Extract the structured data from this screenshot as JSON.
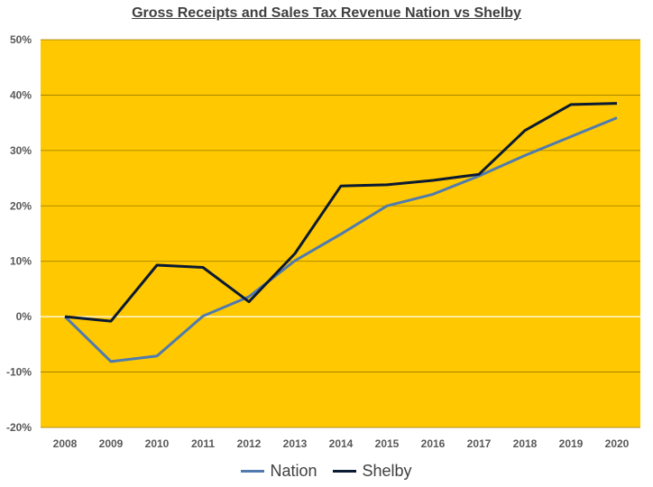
{
  "chart_data": {
    "type": "line",
    "title": "Gross Receipts and Sales Tax Revenue Nation vs Shelby",
    "xlabel": "",
    "ylabel": "",
    "categories": [
      "2008",
      "2009",
      "2010",
      "2011",
      "2012",
      "2013",
      "2014",
      "2015",
      "2016",
      "2017",
      "2018",
      "2019",
      "2020"
    ],
    "ylim": [
      -20,
      50
    ],
    "yticks": [
      -20,
      -10,
      0,
      10,
      20,
      30,
      40,
      50
    ],
    "ytick_labels": [
      "-20%",
      "-10%",
      "0%",
      "10%",
      "20%",
      "30%",
      "40%",
      "50%"
    ],
    "series": [
      {
        "name": "Nation",
        "color": "#4F7BAF",
        "values": [
          0,
          -8.1,
          -7.1,
          0.1,
          3.6,
          10.1,
          14.9,
          20,
          22.1,
          25.4,
          29.1,
          32.5,
          35.9
        ]
      },
      {
        "name": "Shelby",
        "color": "#0B1A33",
        "values": [
          0,
          -0.8,
          9.3,
          8.9,
          2.7,
          11.4,
          23.6,
          23.8,
          24.6,
          25.7,
          33.6,
          38.3,
          38.5
        ]
      }
    ],
    "plot_background": "#FFC800",
    "gridlines": true,
    "legend_position": "bottom"
  }
}
